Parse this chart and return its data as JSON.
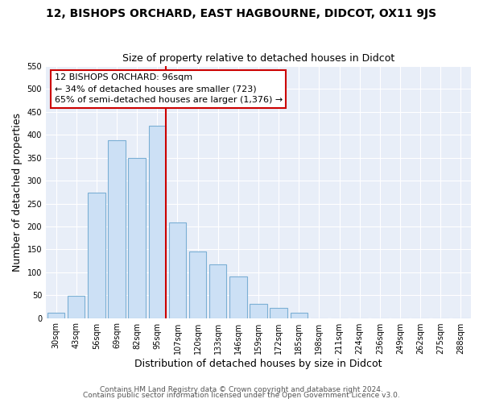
{
  "title": "12, BISHOPS ORCHARD, EAST HAGBOURNE, DIDCOT, OX11 9JS",
  "subtitle": "Size of property relative to detached houses in Didcot",
  "xlabel": "Distribution of detached houses by size in Didcot",
  "ylabel": "Number of detached properties",
  "bar_labels": [
    "30sqm",
    "43sqm",
    "56sqm",
    "69sqm",
    "82sqm",
    "95sqm",
    "107sqm",
    "120sqm",
    "133sqm",
    "146sqm",
    "159sqm",
    "172sqm",
    "185sqm",
    "198sqm",
    "211sqm",
    "224sqm",
    "236sqm",
    "249sqm",
    "262sqm",
    "275sqm",
    "288sqm"
  ],
  "bar_values": [
    11,
    48,
    273,
    388,
    350,
    420,
    208,
    145,
    117,
    90,
    31,
    22,
    11,
    0,
    0,
    0,
    0,
    0,
    0,
    0,
    0
  ],
  "bar_color": "#cce0f5",
  "bar_edge_color": "#7bafd4",
  "highlight_line_color": "#cc0000",
  "annotation_text": "12 BISHOPS ORCHARD: 96sqm\n← 34% of detached houses are smaller (723)\n65% of semi-detached houses are larger (1,376) →",
  "annotation_box_facecolor": "#ffffff",
  "annotation_box_edgecolor": "#cc0000",
  "ylim": [
    0,
    550
  ],
  "yticks": [
    0,
    50,
    100,
    150,
    200,
    250,
    300,
    350,
    400,
    450,
    500,
    550
  ],
  "footer1": "Contains HM Land Registry data © Crown copyright and database right 2024.",
  "footer2": "Contains public sector information licensed under the Open Government Licence v3.0.",
  "bg_color": "#ffffff",
  "plot_bg_color": "#e8eef8",
  "grid_color": "#ffffff",
  "title_fontsize": 10,
  "subtitle_fontsize": 9,
  "axis_label_fontsize": 9,
  "tick_fontsize": 7,
  "footer_fontsize": 6.5,
  "annotation_fontsize": 8
}
